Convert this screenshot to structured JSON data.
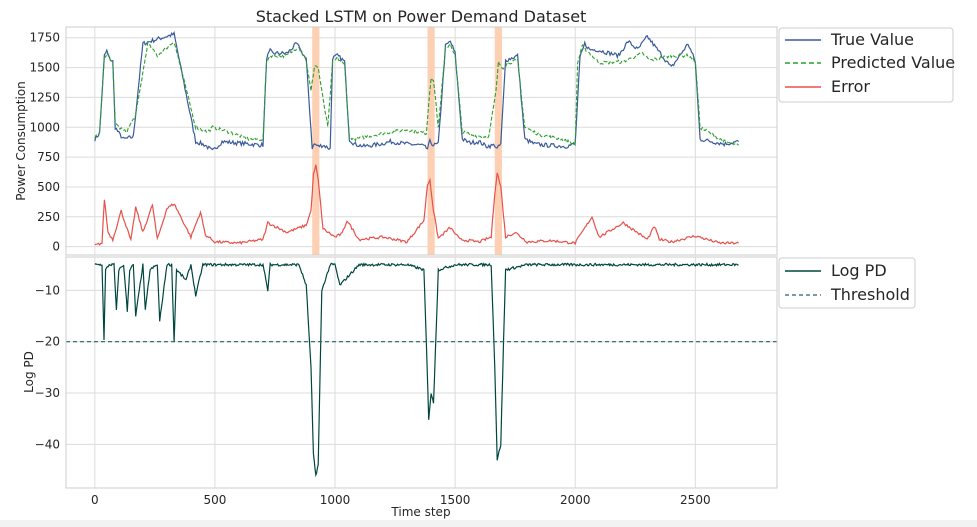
{
  "chart_data": {
    "type": "line",
    "title": "Stacked LSTM on Power Demand Dataset",
    "xlabel": "Time step",
    "xlim": [
      -120,
      2840
    ],
    "xticks": [
      0,
      500,
      1000,
      1500,
      2000,
      2500
    ],
    "grid": true,
    "anomaly_regions": [
      [
        905,
        935
      ],
      [
        1385,
        1415
      ],
      [
        1665,
        1695
      ]
    ],
    "anomaly_color": "#fdd0b4",
    "top": {
      "ylabel": "Power Consumption",
      "ylim": [
        -70,
        1840
      ],
      "yticks": [
        0,
        250,
        500,
        750,
        1000,
        1250,
        1500,
        1750
      ],
      "legend_position": "upper-right-outside",
      "series": [
        {
          "name": "True Value",
          "color": "#3a5a9c",
          "style": "solid",
          "x": [
            0,
            20,
            40,
            50,
            60,
            75,
            85,
            100,
            120,
            160,
            200,
            230,
            330,
            420,
            460,
            490,
            530,
            640,
            700,
            715,
            730,
            740,
            800,
            840,
            880,
            905,
            915,
            930,
            950,
            980,
            990,
            1010,
            1040,
            1060,
            1080,
            1120,
            1190,
            1230,
            1300,
            1360,
            1385,
            1395,
            1410,
            1430,
            1460,
            1480,
            1500,
            1530,
            1560,
            1600,
            1630,
            1665,
            1675,
            1690,
            1710,
            1760,
            1790,
            1830,
            1880,
            1960,
            2000,
            2020,
            2040,
            2060,
            2090,
            2180,
            2220,
            2260,
            2300,
            2400,
            2470,
            2500,
            2520,
            2620,
            2680
          ],
          "y": [
            900,
            950,
            1600,
            1640,
            1580,
            1550,
            1000,
            950,
            900,
            920,
            1700,
            1720,
            1780,
            880,
            850,
            800,
            880,
            860,
            850,
            1580,
            1640,
            1620,
            1620,
            1700,
            1570,
            830,
            860,
            840,
            850,
            820,
            1580,
            1600,
            1550,
            900,
            860,
            840,
            860,
            880,
            860,
            850,
            820,
            880,
            850,
            860,
            1680,
            1720,
            1620,
            900,
            870,
            880,
            840,
            850,
            820,
            860,
            1560,
            1600,
            900,
            860,
            850,
            840,
            860,
            1580,
            1700,
            1650,
            1650,
            1600,
            1720,
            1650,
            1760,
            1500,
            1700,
            1550,
            900,
            860,
            880
          ]
        },
        {
          "name": "Predicted Value",
          "color": "#2ca02c",
          "style": "dashed",
          "x": [
            0,
            20,
            40,
            55,
            75,
            85,
            100,
            130,
            170,
            220,
            260,
            330,
            420,
            470,
            490,
            560,
            640,
            700,
            715,
            730,
            800,
            850,
            880,
            900,
            915,
            930,
            945,
            970,
            990,
            1010,
            1040,
            1060,
            1080,
            1200,
            1300,
            1380,
            1390,
            1400,
            1410,
            1430,
            1460,
            1480,
            1500,
            1530,
            1580,
            1640,
            1670,
            1680,
            1700,
            1720,
            1760,
            1790,
            1850,
            1940,
            2000,
            2010,
            2030,
            2060,
            2100,
            2200,
            2280,
            2310,
            2400,
            2470,
            2500,
            2520,
            2620,
            2680
          ],
          "y": [
            910,
            960,
            1580,
            1620,
            1520,
            1050,
            1000,
            960,
            1100,
            1700,
            1600,
            1720,
            1000,
            960,
            1000,
            960,
            900,
            900,
            1560,
            1600,
            1600,
            1680,
            1560,
            1300,
            1520,
            1500,
            1300,
            1000,
            1540,
            1580,
            1520,
            920,
            900,
            950,
            980,
            950,
            1200,
            1420,
            1400,
            1000,
            1660,
            1700,
            1600,
            960,
            930,
            920,
            1300,
            1540,
            1500,
            1540,
            1560,
            1000,
            940,
            900,
            860,
            1540,
            1680,
            1620,
            1540,
            1550,
            1620,
            1560,
            1600,
            1600,
            1560,
            1000,
            880,
            850
          ]
        },
        {
          "name": "Error",
          "color": "#e8504a",
          "style": "solid",
          "x": [
            0,
            30,
            40,
            55,
            75,
            110,
            150,
            170,
            200,
            240,
            260,
            300,
            330,
            400,
            440,
            460,
            500,
            600,
            700,
            720,
            800,
            880,
            900,
            910,
            920,
            930,
            950,
            1000,
            1030,
            1050,
            1100,
            1200,
            1300,
            1370,
            1385,
            1395,
            1410,
            1430,
            1480,
            1520,
            1600,
            1650,
            1665,
            1675,
            1690,
            1710,
            1750,
            1800,
            1900,
            2000,
            2070,
            2100,
            2200,
            2300,
            2330,
            2350,
            2400,
            2500,
            2600,
            2680
          ],
          "y": [
            10,
            30,
            400,
            120,
            60,
            300,
            50,
            330,
            120,
            350,
            60,
            320,
            360,
            80,
            290,
            100,
            40,
            30,
            60,
            200,
            120,
            180,
            300,
            600,
            680,
            560,
            150,
            80,
            110,
            220,
            60,
            80,
            40,
            220,
            520,
            560,
            300,
            70,
            160,
            60,
            40,
            80,
            450,
            620,
            500,
            80,
            120,
            40,
            50,
            30,
            250,
            80,
            200,
            60,
            170,
            60,
            40,
            90,
            30,
            30
          ]
        }
      ]
    },
    "bottom": {
      "ylabel": "Log PD",
      "ylim": [
        -48.5,
        -3.5
      ],
      "yticks": [
        -40,
        -30,
        -20,
        -10
      ],
      "legend_position": "upper-right-outside",
      "threshold": -20,
      "series": [
        {
          "name": "Log PD",
          "color": "#00463f",
          "style": "solid",
          "x": [
            0,
            30,
            38,
            45,
            60,
            80,
            90,
            100,
            120,
            135,
            145,
            160,
            170,
            200,
            210,
            230,
            260,
            270,
            300,
            320,
            330,
            340,
            380,
            400,
            420,
            450,
            500,
            600,
            700,
            720,
            730,
            800,
            850,
            880,
            900,
            910,
            920,
            930,
            945,
            980,
            1000,
            1020,
            1100,
            1200,
            1300,
            1370,
            1380,
            1390,
            1400,
            1410,
            1430,
            1500,
            1600,
            1650,
            1665,
            1675,
            1690,
            1710,
            1800,
            1900,
            2000,
            2100,
            2200,
            2300,
            2400,
            2500,
            2600,
            2680
          ],
          "y": [
            -5,
            -5,
            -19.5,
            -6,
            -5,
            -5,
            -14,
            -6,
            -5,
            -14,
            -6,
            -5,
            -15,
            -5,
            -14,
            -6,
            -5,
            -16,
            -5,
            -5,
            -20,
            -6,
            -8,
            -5,
            -11,
            -5,
            -5,
            -5,
            -5,
            -10,
            -5,
            -5,
            -5,
            -9,
            -25,
            -42,
            -46,
            -44,
            -10,
            -5,
            -5,
            -9,
            -5,
            -5,
            -5,
            -6,
            -20,
            -35,
            -30,
            -32,
            -6,
            -5,
            -5,
            -5,
            -25,
            -43,
            -40,
            -6,
            -5,
            -5,
            -5,
            -5,
            -5,
            -5,
            -5,
            -5,
            -5,
            -5
          ]
        },
        {
          "name": "Threshold",
          "color": "#2a5f6a",
          "style": "dashed"
        }
      ]
    }
  }
}
